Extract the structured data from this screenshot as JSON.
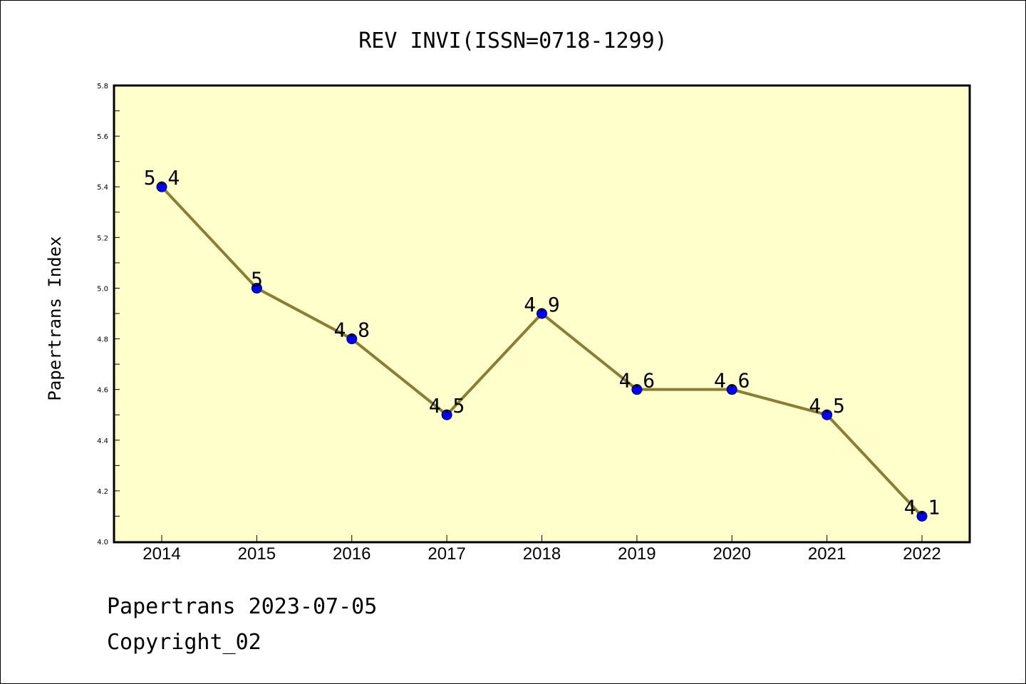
{
  "chart_data": {
    "type": "line",
    "title": "REV INVI(ISSN=0718-1299)",
    "ylabel": "Papertrans Index",
    "xlabel": "",
    "categories": [
      "2014",
      "2015",
      "2016",
      "2017",
      "2018",
      "2019",
      "2020",
      "2021",
      "2022"
    ],
    "values": [
      5.4,
      5.0,
      4.8,
      4.5,
      4.9,
      4.6,
      4.6,
      4.5,
      4.1
    ],
    "data_labels": [
      "5.4",
      "5",
      "4.8",
      "4.5",
      "4.9",
      "4.6",
      "4.6",
      "4.5",
      "4.1"
    ],
    "ylim": [
      4.0,
      5.8
    ],
    "yticks": [
      "4.0",
      "4.2",
      "4.4",
      "4.6",
      "4.8",
      "5.0",
      "5.2",
      "5.4",
      "5.6",
      "5.8"
    ],
    "grid": false,
    "colors": {
      "plot_bg": "#ffffcc",
      "line": "#8b7d32",
      "marker": "#0000ff"
    }
  },
  "footer": {
    "line1": "Papertrans 2023-07-05",
    "line2": "Copyright_02"
  }
}
